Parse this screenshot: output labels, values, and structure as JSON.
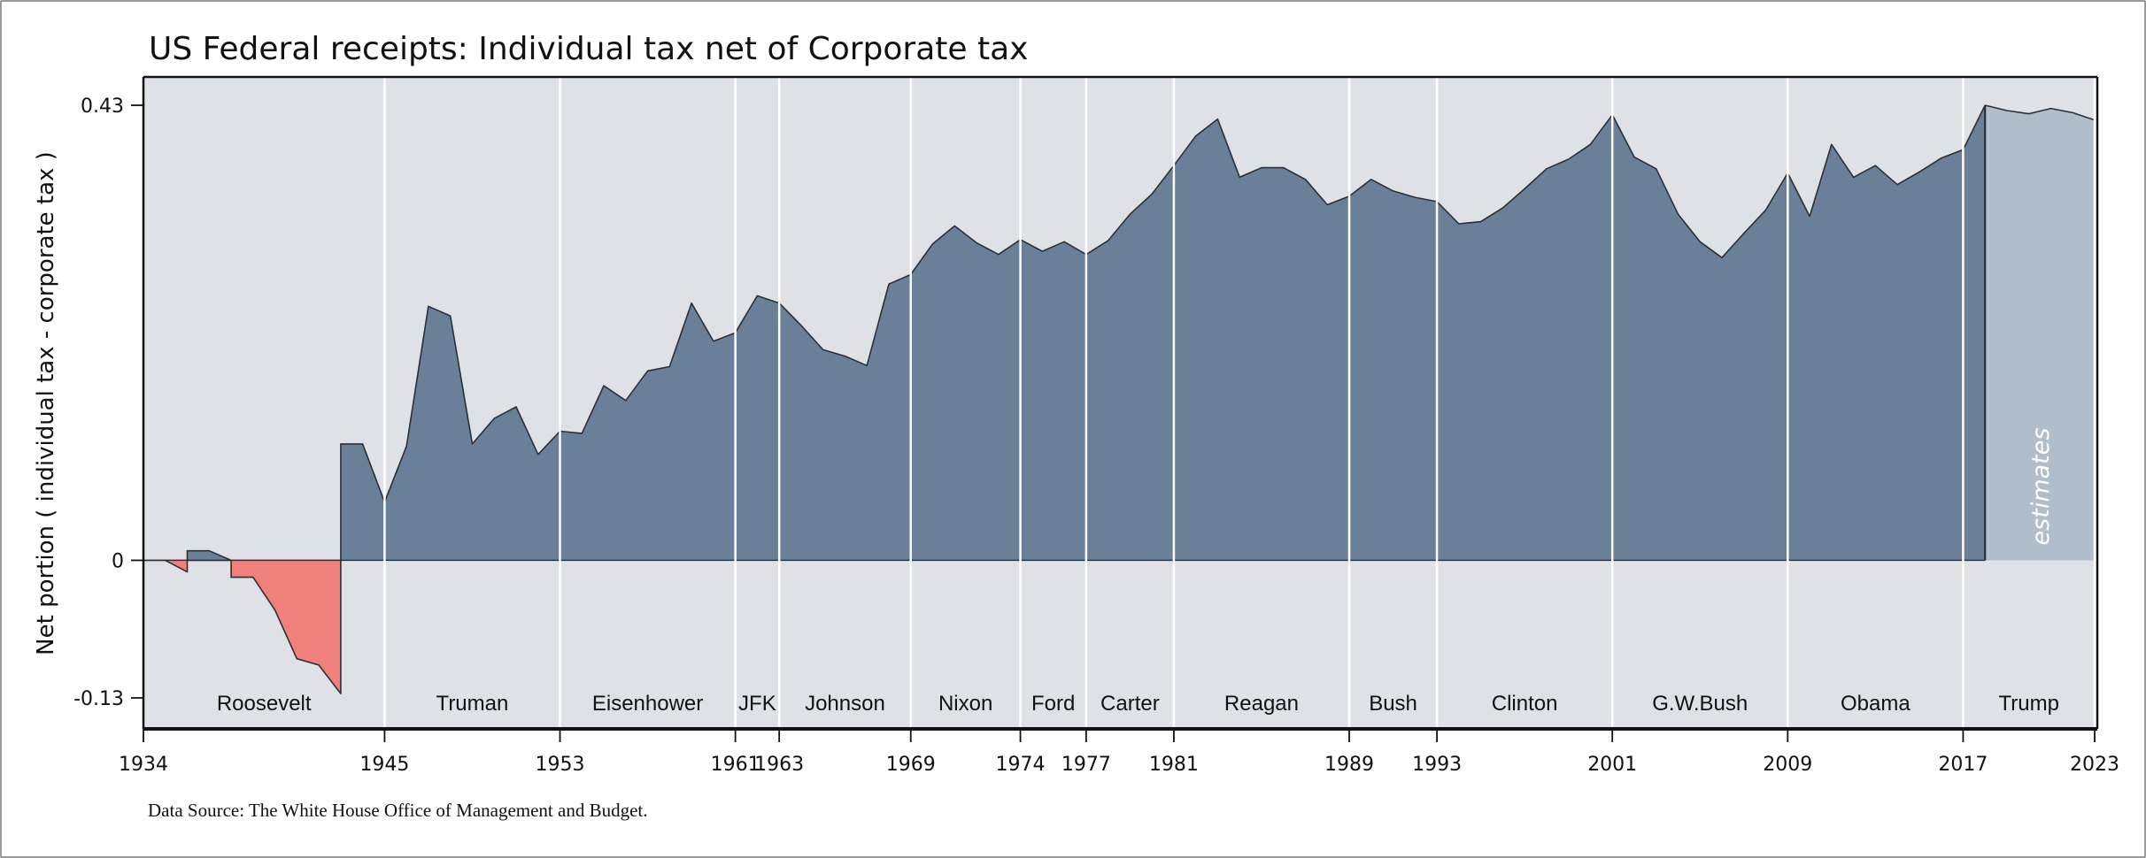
{
  "chart_data": {
    "type": "area",
    "title": "US Federal receipts: Individual tax net of Corporate tax",
    "xlabel": "",
    "ylabel": "Net portion ( individual tax - corporate tax )",
    "xlim": [
      1934,
      2023
    ],
    "ylim": [
      -0.13,
      0.43
    ],
    "yticks": [
      {
        "value": 0.43,
        "label": "0.43"
      },
      {
        "value": 0,
        "label": "0"
      },
      {
        "value": -0.13,
        "label": "-0.13"
      }
    ],
    "xticks": [
      1934,
      1945,
      1953,
      1961,
      1963,
      1969,
      1974,
      1977,
      1981,
      1989,
      1993,
      2001,
      2009,
      2017,
      2023
    ],
    "grid": false,
    "colors": {
      "plot_background": "#dee2e6",
      "positive_fill": "#6a8099",
      "negative_fill": "#ef807c",
      "estimate_fill": "#b0bdca",
      "outline": "#2b2f36",
      "term_lines": "#ffffff"
    },
    "series": [
      {
        "name": "positive",
        "points": [
          [
            1934,
            0
          ],
          [
            1936,
            0
          ],
          [
            1936,
            0.009
          ],
          [
            1937,
            0.009
          ],
          [
            1938,
            0
          ],
          [
            1943,
            0
          ],
          [
            1943,
            0.11
          ],
          [
            1944,
            0.11
          ],
          [
            1945,
            0.055
          ],
          [
            1946,
            0.108
          ],
          [
            1947,
            0.24
          ],
          [
            1948,
            0.231
          ],
          [
            1949,
            0.11
          ],
          [
            1950,
            0.134
          ],
          [
            1951,
            0.145
          ],
          [
            1952,
            0.1
          ],
          [
            1953,
            0.122
          ],
          [
            1954,
            0.12
          ],
          [
            1955,
            0.165
          ],
          [
            1956,
            0.151
          ],
          [
            1957,
            0.179
          ],
          [
            1958,
            0.183
          ],
          [
            1959,
            0.243
          ],
          [
            1960,
            0.207
          ],
          [
            1961,
            0.215
          ],
          [
            1962,
            0.25
          ],
          [
            1963,
            0.243
          ],
          [
            1964,
            0.222
          ],
          [
            1965,
            0.199
          ],
          [
            1966,
            0.193
          ],
          [
            1967,
            0.184
          ],
          [
            1968,
            0.261
          ],
          [
            1969,
            0.27
          ],
          [
            1970,
            0.299
          ],
          [
            1971,
            0.316
          ],
          [
            1972,
            0.3
          ],
          [
            1973,
            0.289
          ],
          [
            1974,
            0.303
          ],
          [
            1975,
            0.292
          ],
          [
            1976,
            0.301
          ],
          [
            1977,
            0.289
          ],
          [
            1978,
            0.302
          ],
          [
            1979,
            0.327
          ],
          [
            1980,
            0.346
          ],
          [
            1981,
            0.373
          ],
          [
            1982,
            0.401
          ],
          [
            1983,
            0.417
          ],
          [
            1984,
            0.362
          ],
          [
            1985,
            0.371
          ],
          [
            1986,
            0.371
          ],
          [
            1987,
            0.36
          ],
          [
            1988,
            0.336
          ],
          [
            1989,
            0.344
          ],
          [
            1990,
            0.36
          ],
          [
            1991,
            0.349
          ],
          [
            1992,
            0.343
          ],
          [
            1993,
            0.339
          ],
          [
            1994,
            0.318
          ],
          [
            1995,
            0.32
          ],
          [
            1996,
            0.333
          ],
          [
            1997,
            0.351
          ],
          [
            1998,
            0.37
          ],
          [
            1999,
            0.379
          ],
          [
            2000,
            0.393
          ],
          [
            2001,
            0.421
          ],
          [
            2002,
            0.381
          ],
          [
            2003,
            0.37
          ],
          [
            2004,
            0.327
          ],
          [
            2005,
            0.301
          ],
          [
            2006,
            0.286
          ],
          [
            2007,
            0.309
          ],
          [
            2008,
            0.331
          ],
          [
            2009,
            0.366
          ],
          [
            2010,
            0.325
          ],
          [
            2011,
            0.393
          ],
          [
            2012,
            0.362
          ],
          [
            2013,
            0.373
          ],
          [
            2014,
            0.355
          ],
          [
            2015,
            0.367
          ],
          [
            2016,
            0.38
          ],
          [
            2017,
            0.388
          ],
          [
            2018,
            0.43
          ]
        ]
      },
      {
        "name": "negative",
        "points": [
          [
            1935,
            0
          ],
          [
            1936,
            -0.011
          ],
          [
            1936,
            0
          ],
          [
            1938,
            0
          ],
          [
            1938,
            -0.016
          ],
          [
            1939,
            -0.016
          ],
          [
            1940,
            -0.047
          ],
          [
            1941,
            -0.093
          ],
          [
            1942,
            -0.099
          ],
          [
            1943,
            -0.126
          ],
          [
            1943,
            0
          ]
        ]
      },
      {
        "name": "estimates",
        "points": [
          [
            2018,
            0.43
          ],
          [
            2019,
            0.425
          ],
          [
            2020,
            0.422
          ],
          [
            2021,
            0.427
          ],
          [
            2022,
            0.423
          ],
          [
            2023,
            0.416
          ]
        ]
      }
    ],
    "presidents": [
      {
        "name": "Roosevelt",
        "start": 1934,
        "end": 1945
      },
      {
        "name": "Truman",
        "start": 1945,
        "end": 1953
      },
      {
        "name": "Eisenhower",
        "start": 1953,
        "end": 1961
      },
      {
        "name": "JFK",
        "start": 1961,
        "end": 1963
      },
      {
        "name": "Johnson",
        "start": 1963,
        "end": 1969
      },
      {
        "name": "Nixon",
        "start": 1969,
        "end": 1974
      },
      {
        "name": "Ford",
        "start": 1974,
        "end": 1977
      },
      {
        "name": "Carter",
        "start": 1977,
        "end": 1981
      },
      {
        "name": "Reagan",
        "start": 1981,
        "end": 1989
      },
      {
        "name": "Bush",
        "start": 1989,
        "end": 1993
      },
      {
        "name": "Clinton",
        "start": 1993,
        "end": 2001
      },
      {
        "name": "G.W.Bush",
        "start": 2001,
        "end": 2009
      },
      {
        "name": "Obama",
        "start": 2009,
        "end": 2017
      },
      {
        "name": "Trump",
        "start": 2017,
        "end": 2023
      }
    ],
    "annotations": [
      {
        "text": "estimates",
        "x_from": 2018,
        "x_to": 2023,
        "style": "vertical"
      }
    ],
    "source": "Data Source: The White House Office of Management and Budget."
  }
}
